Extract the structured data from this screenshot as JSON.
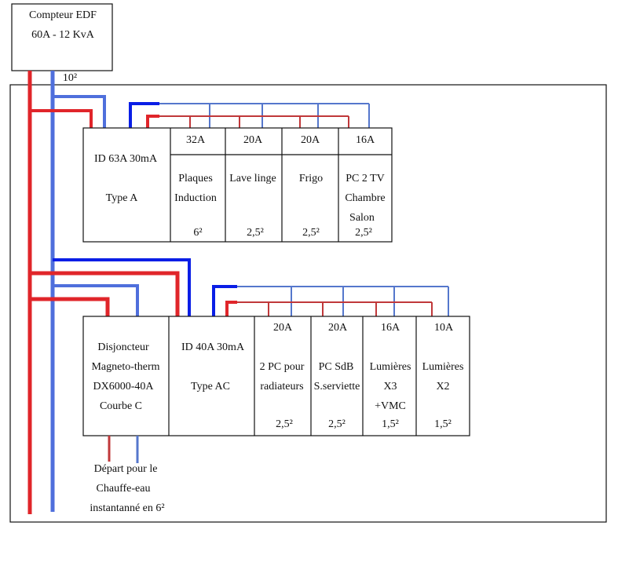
{
  "meter": {
    "line1": "Compteur EDF",
    "line2": "60A - 12 KvA"
  },
  "main_cable_section": "10²",
  "colors": {
    "phase": "#e0252a",
    "neutral": "#4f6fdc",
    "neutral_bold": "#0a1ee6",
    "phase_thin": "#c0383a",
    "neutral_thin": "#5577cc"
  },
  "row1": {
    "rcd": {
      "line1": "ID 63A 30mA",
      "line2": "Type A"
    },
    "breakers": [
      {
        "rating": "32A",
        "label": [
          "Plaques",
          "Induction"
        ],
        "section": "6²"
      },
      {
        "rating": "20A",
        "label": [
          "Lave linge"
        ],
        "section": "2,5²"
      },
      {
        "rating": "20A",
        "label": [
          "Frigo"
        ],
        "section": "2,5²"
      },
      {
        "rating": "16A",
        "label": [
          "PC 2 TV",
          "Chambre",
          "Salon"
        ],
        "section": "2,5²"
      }
    ]
  },
  "row2": {
    "main_breaker": {
      "lines": [
        "Disjoncteur",
        "Magneto-therm",
        "DX6000-40A",
        "Courbe C"
      ]
    },
    "rcd": {
      "line1": "ID 40A 30mA",
      "line2": "Type AC"
    },
    "breakers": [
      {
        "rating": "20A",
        "label": [
          "2 PC pour",
          "radiateurs"
        ],
        "section": "2,5²"
      },
      {
        "rating": "20A",
        "label": [
          "PC SdB",
          "S.serviette"
        ],
        "section": "2,5²"
      },
      {
        "rating": "16A",
        "label": [
          "Lumières",
          "X3",
          "+VMC"
        ],
        "section": "1,5²"
      },
      {
        "rating": "10A",
        "label": [
          "Lumières",
          "X2"
        ],
        "section": "1,5²"
      }
    ]
  },
  "water_heater": {
    "lines": [
      "Départ pour le",
      "Chauffe-eau",
      "instantanné en 6²"
    ]
  }
}
